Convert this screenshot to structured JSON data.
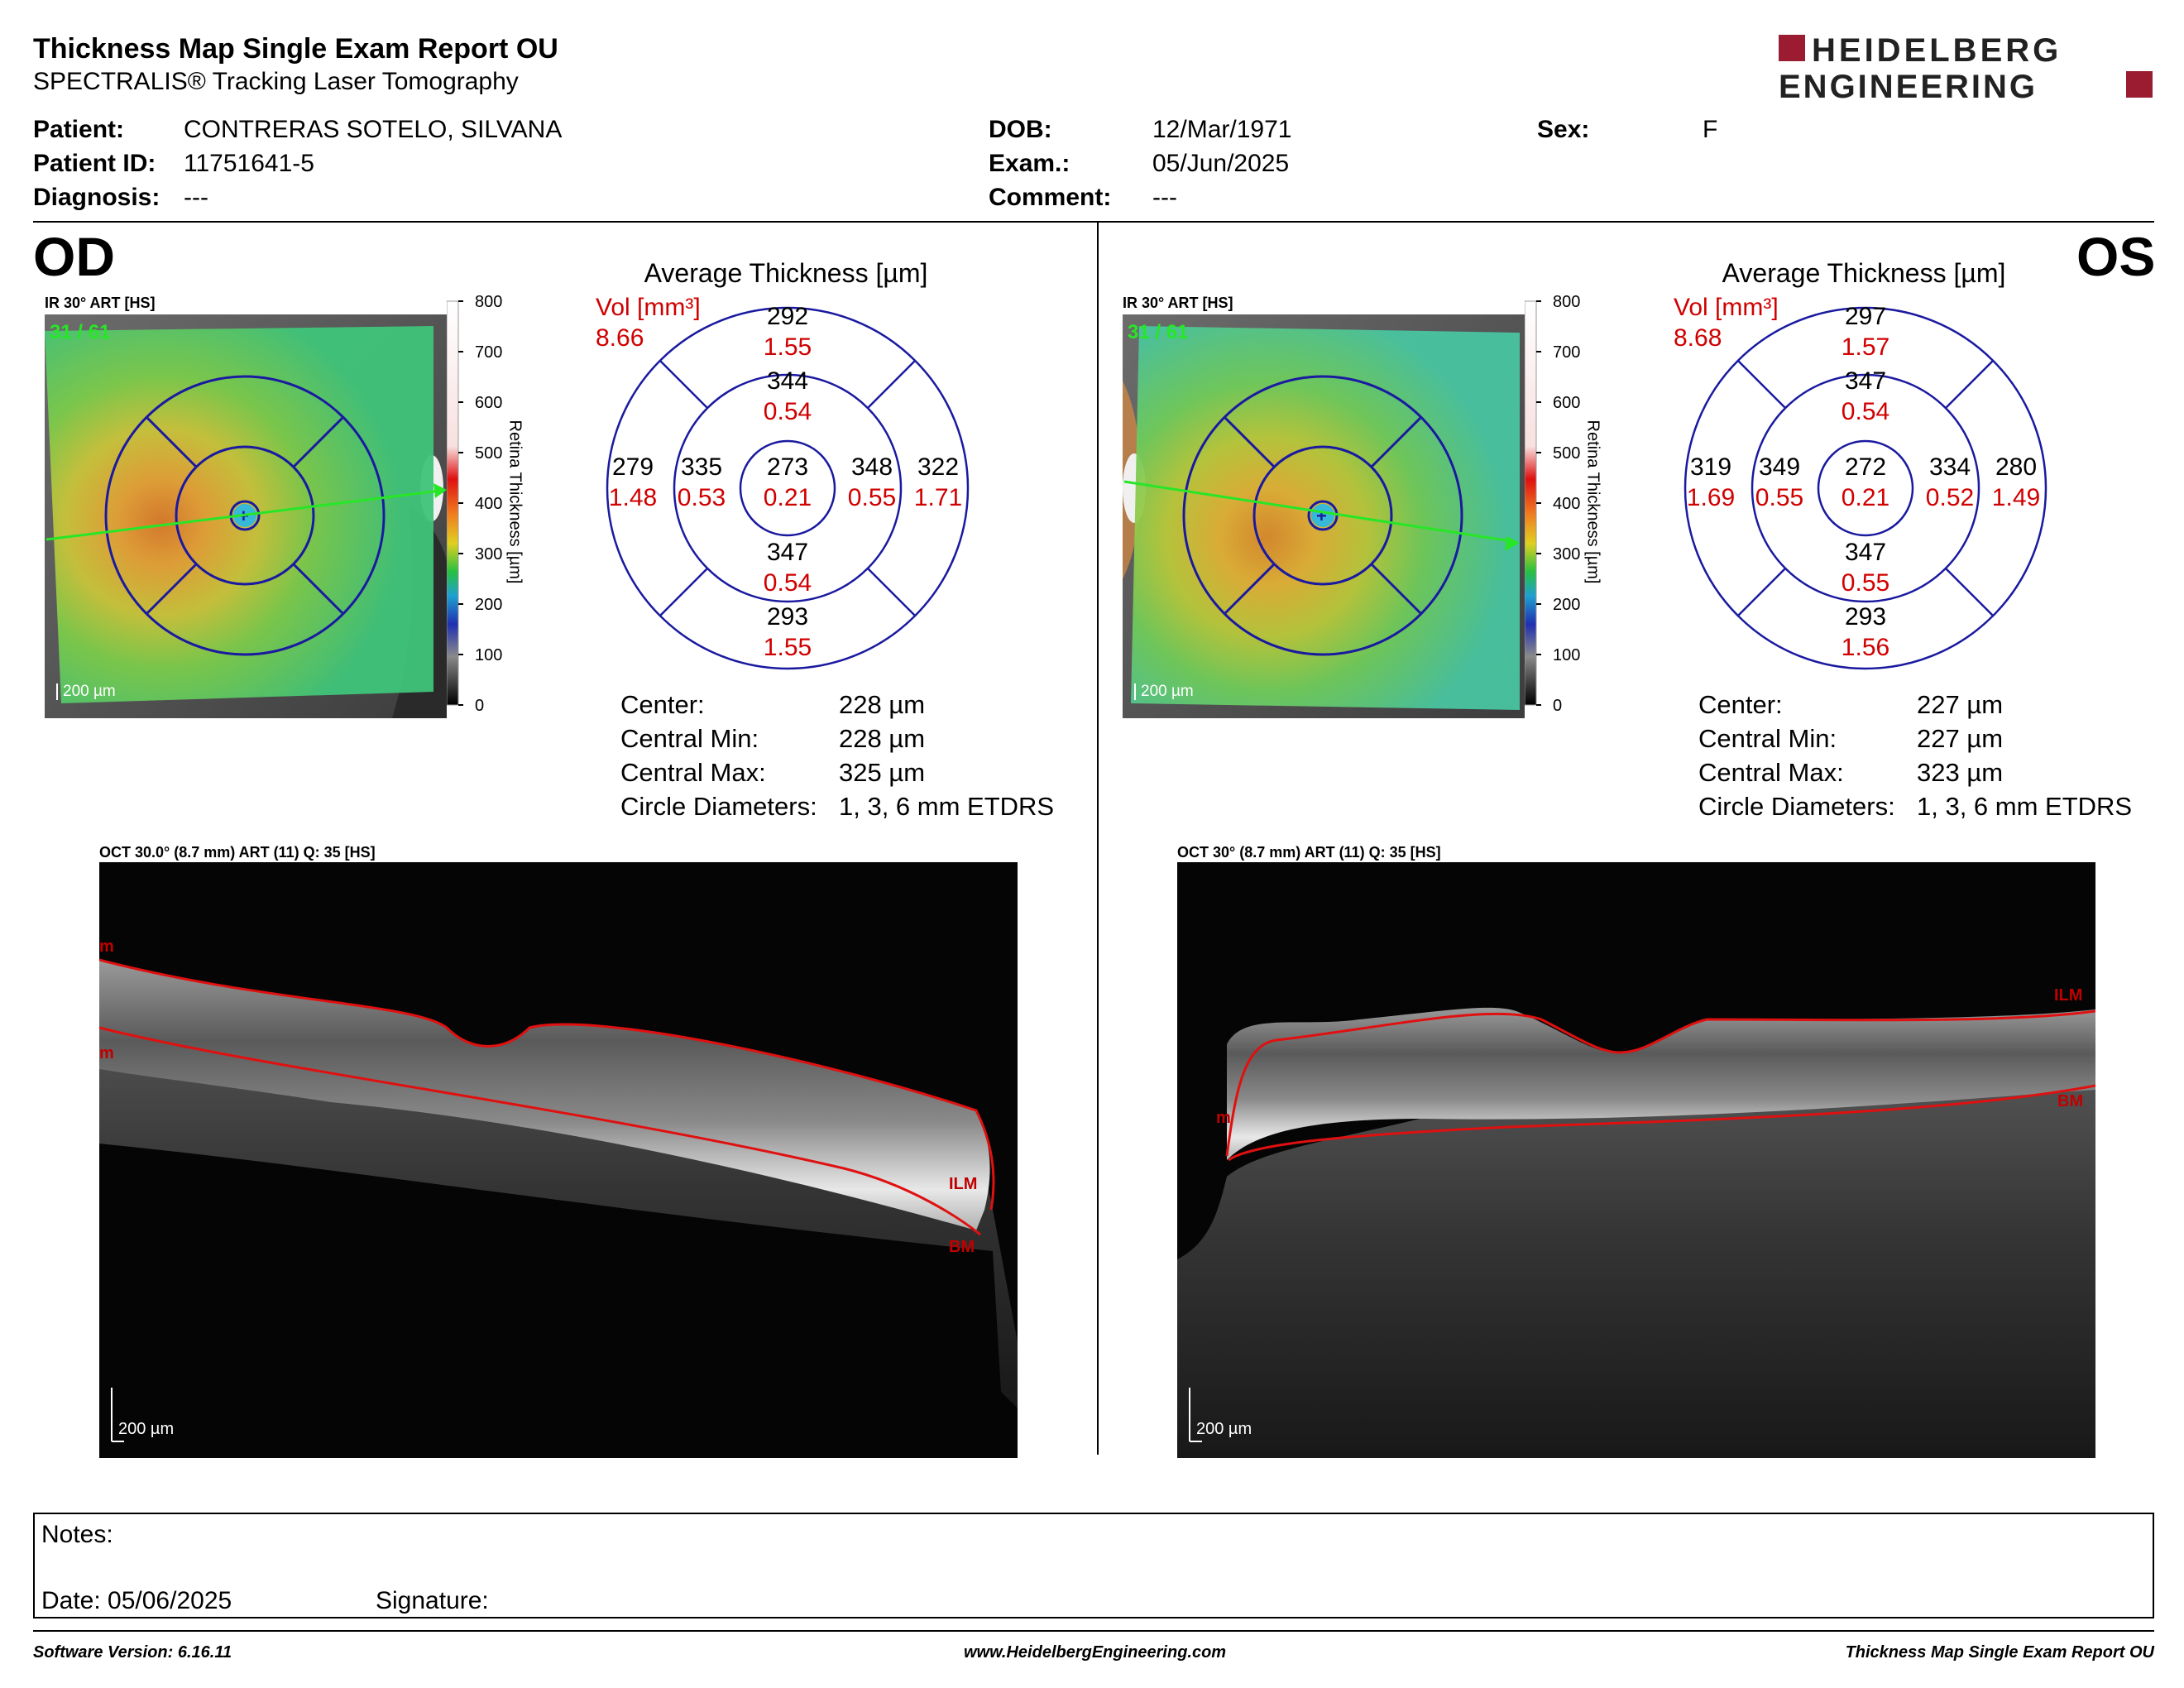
{
  "header": {
    "title": "Thickness Map Single Exam Report OU",
    "subtitle": "SPECTRALIS® Tracking Laser Tomography",
    "logo_line1": "HEIDELBERG",
    "logo_line2": "ENGINEERING"
  },
  "patient": {
    "patient_label": "Patient:",
    "patient_value": "CONTRERAS SOTELO, SILVANA",
    "id_label": "Patient ID:",
    "id_value": "11751641-5",
    "diagnosis_label": "Diagnosis:",
    "diagnosis_value": "---",
    "dob_label": "DOB:",
    "dob_value": "12/Mar/1971",
    "exam_label": "Exam.:",
    "exam_value": "05/Jun/2025",
    "comment_label": "Comment:",
    "comment_value": "---",
    "sex_label": "Sex:",
    "sex_value": "F"
  },
  "colorbar": {
    "ticks": [
      "800",
      "700",
      "600",
      "500",
      "400",
      "300",
      "200",
      "100",
      "0"
    ],
    "title": "Retina  Thickness [µm]"
  },
  "od": {
    "eye_label": "OD",
    "ir_label": "IR 30° ART [HS]",
    "frame_count": "31 / 61",
    "scale": "200 µm",
    "avg_title": "Average Thickness [µm]",
    "vol_label": "Vol [mm³]",
    "vol_total": "8.66",
    "sectors": {
      "outer_superior": {
        "thk": "292",
        "vol": "1.55"
      },
      "inner_superior": {
        "thk": "344",
        "vol": "0.54"
      },
      "outer_temporal": {
        "thk": "279",
        "vol": "1.48"
      },
      "inner_temporal": {
        "thk": "335",
        "vol": "0.53"
      },
      "center": {
        "thk": "273",
        "vol": "0.21"
      },
      "inner_nasal": {
        "thk": "348",
        "vol": "0.55"
      },
      "outer_nasal": {
        "thk": "322",
        "vol": "1.71"
      },
      "inner_inferior": {
        "thk": "347",
        "vol": "0.54"
      },
      "outer_inferior": {
        "thk": "293",
        "vol": "1.55"
      }
    },
    "stats": {
      "center_label": "Center:",
      "center_value": "228 µm",
      "min_label": "Central Min:",
      "min_value": "228 µm",
      "max_label": "Central Max:",
      "max_value": "325 µm",
      "diam_label": "Circle Diameters:",
      "diam_value": "1, 3, 6 mm ETDRS"
    },
    "oct_label": "OCT 30.0° (8.7 mm) ART (11) Q: 35 [HS]",
    "oct_scale": "200 µm",
    "ilm": "ILM",
    "bm": "BM",
    "m1": "m",
    "m2": "m"
  },
  "os": {
    "eye_label": "OS",
    "ir_label": "IR 30° ART [HS]",
    "frame_count": "31 / 61",
    "scale": "200 µm",
    "avg_title": "Average Thickness [µm]",
    "vol_label": "Vol [mm³]",
    "vol_total": "8.68",
    "sectors": {
      "outer_superior": {
        "thk": "297",
        "vol": "1.57"
      },
      "inner_superior": {
        "thk": "347",
        "vol": "0.54"
      },
      "outer_temporal": {
        "thk": "319",
        "vol": "1.69"
      },
      "inner_temporal": {
        "thk": "349",
        "vol": "0.55"
      },
      "center": {
        "thk": "272",
        "vol": "0.21"
      },
      "inner_nasal": {
        "thk": "334",
        "vol": "0.52"
      },
      "outer_nasal": {
        "thk": "280",
        "vol": "1.49"
      },
      "inner_inferior": {
        "thk": "347",
        "vol": "0.55"
      },
      "outer_inferior": {
        "thk": "293",
        "vol": "1.56"
      }
    },
    "stats": {
      "center_label": "Center:",
      "center_value": "227 µm",
      "min_label": "Central Min:",
      "min_value": "227 µm",
      "max_label": "Central Max:",
      "max_value": "323 µm",
      "diam_label": "Circle Diameters:",
      "diam_value": "1, 3, 6 mm ETDRS"
    },
    "oct_label": "OCT 30° (8.7 mm) ART (11) Q: 35 [HS]",
    "oct_scale": "200 µm",
    "ilm": "ILM",
    "bm": "BM",
    "m1": "m"
  },
  "notes": {
    "notes_label": "Notes:",
    "date_label": "Date: 05/06/2025",
    "signature_label": "Signature:"
  },
  "footer": {
    "software": "Software Version: 6.16.11",
    "website": "www.HeidelbergEngineering.com",
    "report_name": "Thickness Map Single Exam Report OU"
  }
}
